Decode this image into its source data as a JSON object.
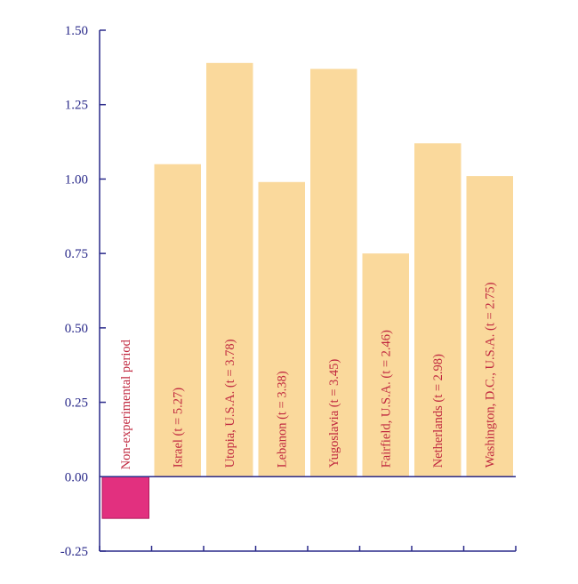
{
  "chart_data": {
    "type": "bar",
    "title": "",
    "xlabel": "",
    "ylabel": "",
    "ylim": [
      -0.25,
      1.5
    ],
    "yticks": [
      -0.25,
      0.0,
      0.25,
      0.5,
      0.75,
      1.0,
      1.25,
      1.5
    ],
    "ytick_labels": [
      "-0.25",
      "0.00",
      "0.25",
      "0.50",
      "0.75",
      "1.00",
      "1.25",
      "1.50"
    ],
    "categories": [
      "Non-experimental period",
      "Israel (t = 5.27)",
      "Utopia, U.S.A. (t = 3.78)",
      "Lebanon (t = 3.38)",
      "Yugoslavia (t = 3.45)",
      "Fairfield, U.S.A. (t = 2.46)",
      "Netherlands (t = 2.98)",
      "Washington, D.C., U.S.A. (t = 2.75)"
    ],
    "values": [
      -0.14,
      1.05,
      1.39,
      0.99,
      1.37,
      0.75,
      1.12,
      1.01
    ],
    "grid": false,
    "colors": {
      "axis": "#2a2a8a",
      "bar": "#fad99c",
      "highlight_bar": "#e2307f",
      "highlight_border": "#b01a5c",
      "bar_label": "#c0283f",
      "highlight_label": "#d81b60"
    }
  }
}
